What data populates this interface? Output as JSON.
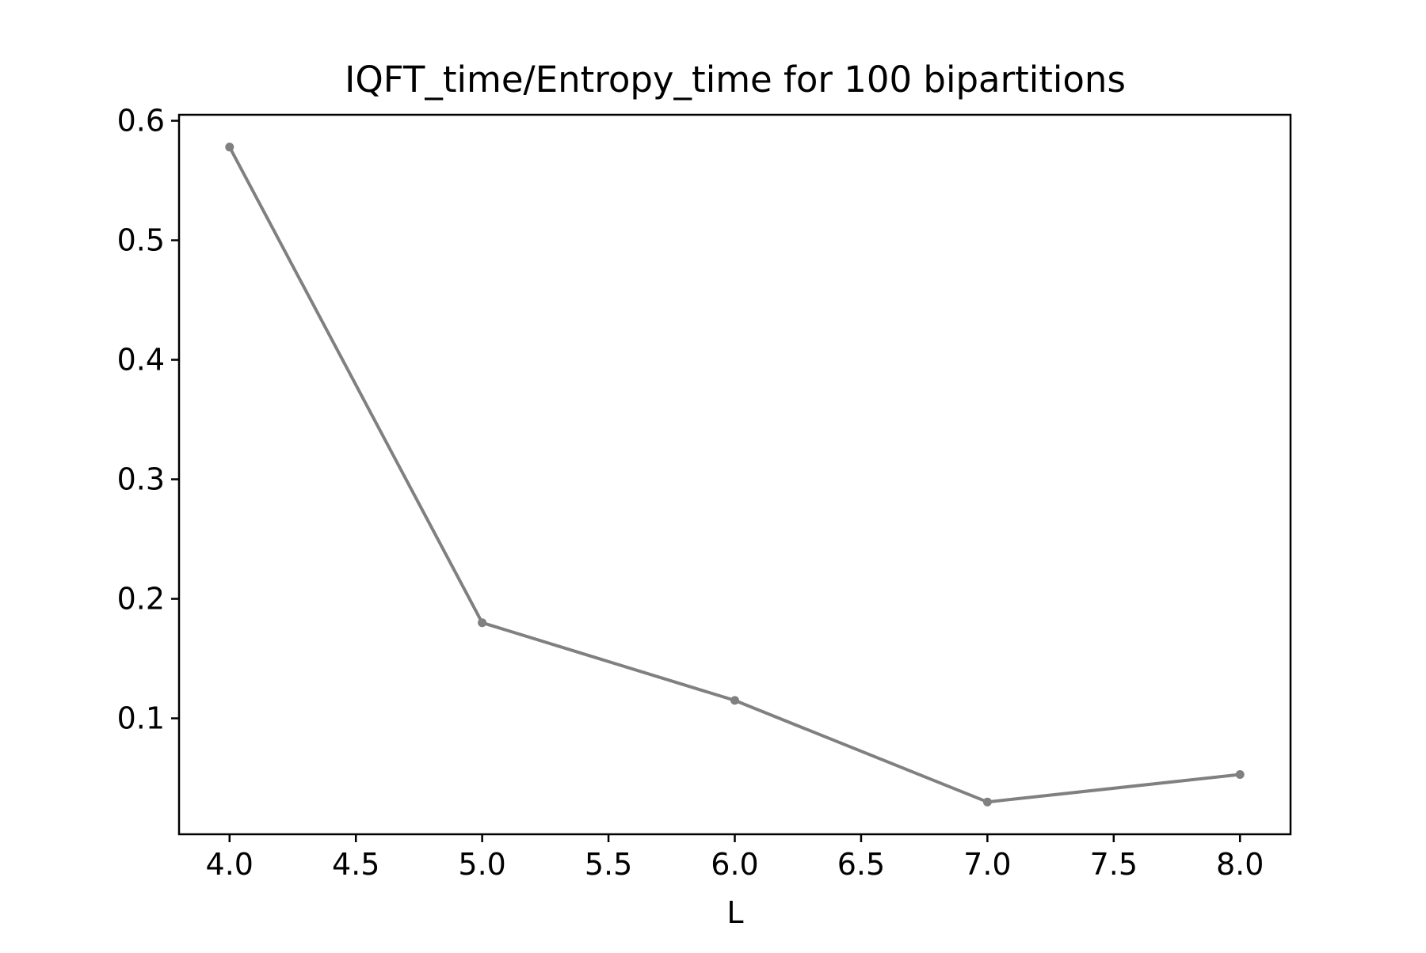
{
  "chart_data": {
    "type": "line",
    "title": "IQFT_time/Entropy_time for 100 bipartitions",
    "xlabel": "L",
    "ylabel": "",
    "xlim": [
      3.8,
      8.2
    ],
    "ylim": [
      0.003,
      0.605
    ],
    "xticks": [
      4.0,
      4.5,
      5.0,
      5.5,
      6.0,
      6.5,
      7.0,
      7.5,
      8.0
    ],
    "xtick_labels": [
      "4.0",
      "4.5",
      "5.0",
      "5.5",
      "6.0",
      "6.5",
      "7.0",
      "7.5",
      "8.0"
    ],
    "yticks": [
      0.1,
      0.2,
      0.3,
      0.4,
      0.5,
      0.6
    ],
    "ytick_labels": [
      "0.1",
      "0.2",
      "0.3",
      "0.4",
      "0.5",
      "0.6"
    ],
    "grid": false,
    "series": [
      {
        "color": "#808080",
        "x": [
          4,
          5,
          6,
          7,
          8
        ],
        "y": [
          0.578,
          0.18,
          0.115,
          0.03,
          0.053
        ]
      }
    ]
  }
}
